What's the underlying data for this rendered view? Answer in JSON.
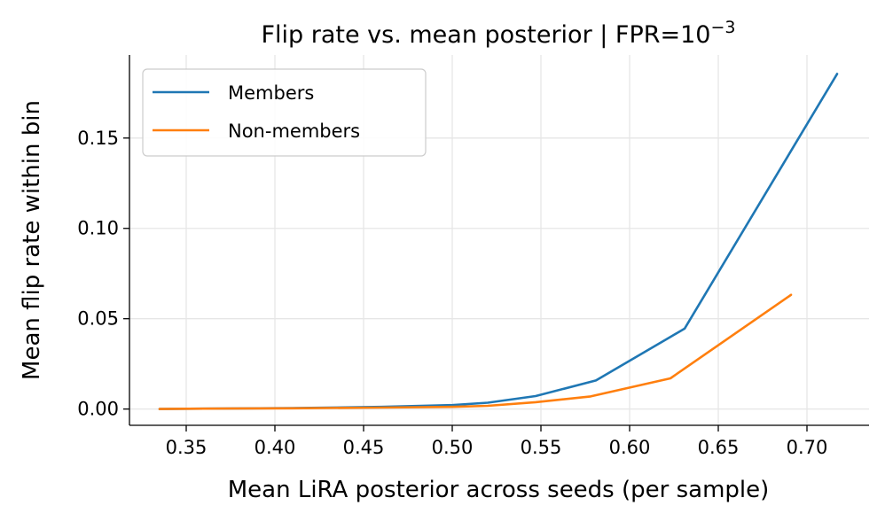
{
  "chart_data": {
    "type": "line",
    "title": {
      "prefix": "Flip rate vs. mean posterior  |  FPR=10",
      "exponent": "−3"
    },
    "xlabel": "Mean LiRA posterior across seeds (per sample)",
    "ylabel": "Mean flip rate within bin",
    "xlim": [
      0.318,
      0.735
    ],
    "ylim": [
      -0.009,
      0.196
    ],
    "xticks": [
      0.35,
      0.4,
      0.45,
      0.5,
      0.55,
      0.6,
      0.65,
      0.7
    ],
    "xtick_labels": [
      "0.35",
      "0.40",
      "0.45",
      "0.50",
      "0.55",
      "0.60",
      "0.65",
      "0.70"
    ],
    "yticks": [
      0.0,
      0.05,
      0.1,
      0.15
    ],
    "ytick_labels": [
      "0.00",
      "0.05",
      "0.10",
      "0.15"
    ],
    "grid": true,
    "legend_position": "top-left",
    "series": [
      {
        "name": "Members",
        "color": "#1f77b4",
        "x": [
          0.335,
          0.36,
          0.41,
          0.46,
          0.5,
          0.52,
          0.547,
          0.581,
          0.631,
          0.717
        ],
        "y": [
          0.0,
          0.0002,
          0.0005,
          0.0012,
          0.0022,
          0.0035,
          0.0072,
          0.0158,
          0.0445,
          0.1855
        ]
      },
      {
        "name": "Non-members",
        "color": "#ff7f0e",
        "x": [
          0.335,
          0.36,
          0.41,
          0.46,
          0.5,
          0.52,
          0.547,
          0.578,
          0.623,
          0.691
        ],
        "y": [
          0.0,
          0.0002,
          0.0004,
          0.0008,
          0.0012,
          0.0018,
          0.0038,
          0.007,
          0.017,
          0.0632
        ]
      }
    ]
  }
}
